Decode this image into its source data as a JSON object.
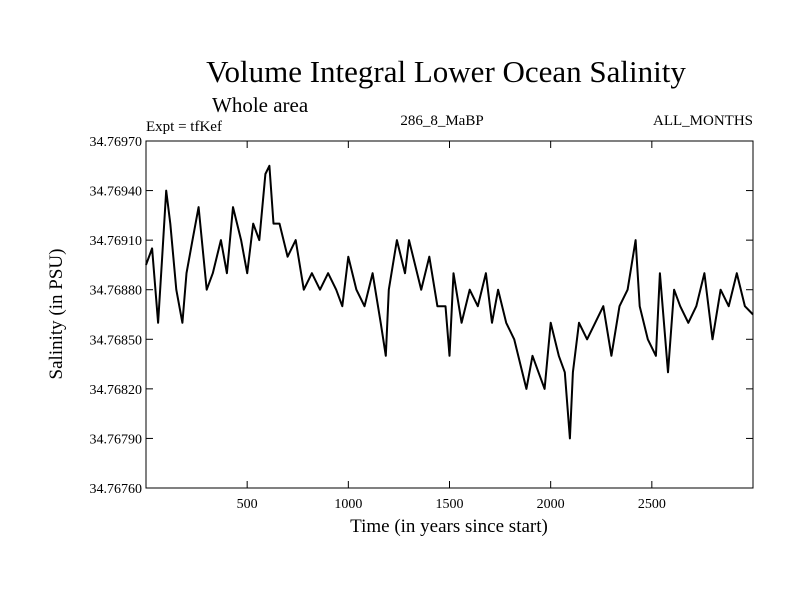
{
  "chart_data": {
    "type": "line",
    "title": "Volume Integral Lower Ocean Salinity",
    "subtitle": "Whole area",
    "experiment": "Expt = tfKef",
    "period": "286_8_MaBP",
    "months": "ALL_MONTHS",
    "xlabel": "Time (in years since start)",
    "ylabel": "Salinity (in PSU)",
    "xlim": [
      0,
      3000
    ],
    "ylim": [
      34.7676,
      34.7697
    ],
    "x_ticks": [
      "500",
      "1000",
      "1500",
      "2000",
      "2500"
    ],
    "y_ticks": [
      "34.76760",
      "34.76790",
      "34.76820",
      "34.76850",
      "34.76880",
      "34.76910",
      "34.76940",
      "34.76970"
    ],
    "grid": false,
    "legend": "none",
    "line_color": "#000000",
    "series": [
      {
        "x": [
          0,
          30,
          60,
          80,
          100,
          120,
          150,
          180,
          200,
          230,
          260,
          300,
          330,
          370,
          400,
          430,
          470,
          500,
          530,
          560,
          590,
          610,
          630,
          660,
          700,
          740,
          780,
          820,
          860,
          900,
          940,
          970,
          1000,
          1040,
          1080,
          1120,
          1160,
          1185,
          1200,
          1240,
          1280,
          1300,
          1320,
          1360,
          1400,
          1440,
          1480,
          1500,
          1520,
          1560,
          1600,
          1640,
          1680,
          1710,
          1740,
          1780,
          1820,
          1860,
          1880,
          1910,
          1940,
          1970,
          2000,
          2040,
          2070,
          2095,
          2110,
          2140,
          2180,
          2220,
          2260,
          2300,
          2340,
          2380,
          2420,
          2440,
          2480,
          2520,
          2540,
          2580,
          2610,
          2640,
          2680,
          2720,
          2760,
          2800,
          2840,
          2880,
          2920,
          2960,
          3000
        ],
        "y": [
          34.76895,
          34.76905,
          34.7686,
          34.769,
          34.7694,
          34.7692,
          34.7688,
          34.7686,
          34.7689,
          34.7691,
          34.7693,
          34.7688,
          34.7689,
          34.7691,
          34.7689,
          34.7693,
          34.7691,
          34.7689,
          34.7692,
          34.7691,
          34.7695,
          34.76955,
          34.7692,
          34.7692,
          34.769,
          34.7691,
          34.7688,
          34.7689,
          34.7688,
          34.7689,
          34.7688,
          34.7687,
          34.769,
          34.7688,
          34.7687,
          34.7689,
          34.7686,
          34.7684,
          34.7688,
          34.7691,
          34.7689,
          34.7691,
          34.769,
          34.7688,
          34.769,
          34.7687,
          34.7687,
          34.7684,
          34.7689,
          34.7686,
          34.7688,
          34.7687,
          34.7689,
          34.7686,
          34.7688,
          34.7686,
          34.7685,
          34.7683,
          34.7682,
          34.7684,
          34.7683,
          34.7682,
          34.7686,
          34.7684,
          34.7683,
          34.7679,
          34.7683,
          34.7686,
          34.7685,
          34.7686,
          34.7687,
          34.7684,
          34.7687,
          34.7688,
          34.7691,
          34.7687,
          34.7685,
          34.7684,
          34.7689,
          34.7683,
          34.7688,
          34.7687,
          34.7686,
          34.7687,
          34.7689,
          34.7685,
          34.7688,
          34.7687,
          34.7689,
          34.7687,
          34.76865
        ]
      }
    ]
  }
}
